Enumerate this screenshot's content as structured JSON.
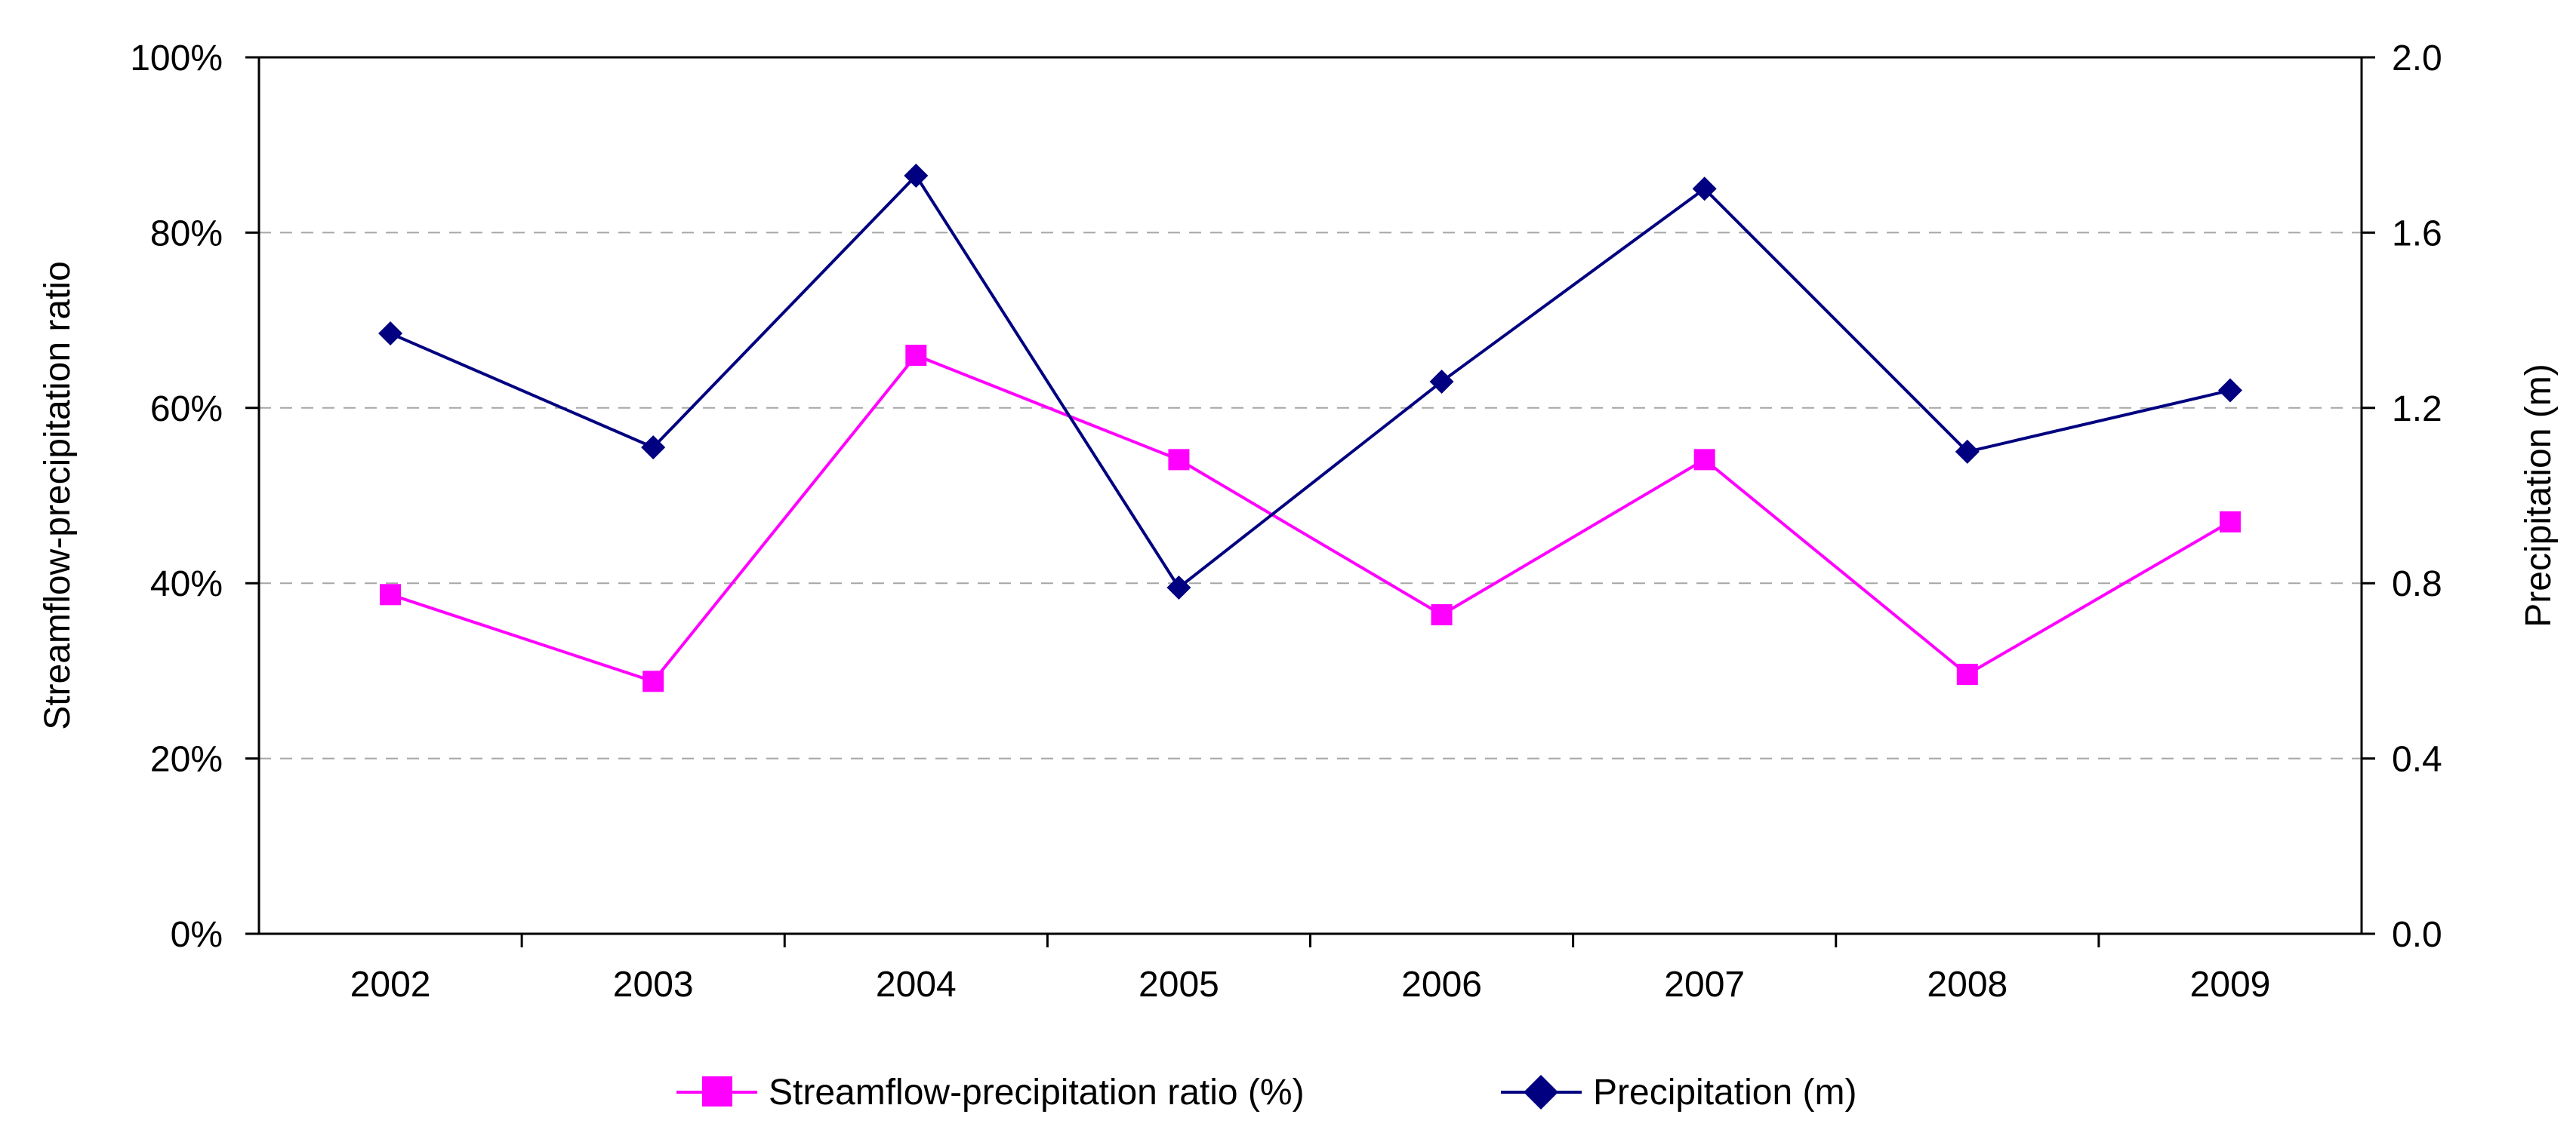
{
  "chart_data": {
    "type": "line",
    "categories": [
      "2002",
      "2003",
      "2004",
      "2005",
      "2006",
      "2007",
      "2008",
      "2009"
    ],
    "series": [
      {
        "name": "Streamflow-precipitation ratio (%)",
        "axis": "left",
        "marker": "square",
        "color": "#ff00ff",
        "values": [
          38.7,
          28.8,
          66.0,
          54.1,
          36.4,
          54.1,
          29.6,
          47.0
        ]
      },
      {
        "name": "Precipitation (m)",
        "axis": "right",
        "marker": "diamond",
        "color": "#000080",
        "values": [
          1.37,
          1.11,
          1.73,
          0.79,
          1.26,
          1.7,
          1.1,
          1.24
        ]
      }
    ],
    "ylabel": "Streamflow-precipitation ratio",
    "y2label": "Precipitation (m)",
    "ylim": [
      0,
      100
    ],
    "y2lim": [
      0,
      2.0
    ],
    "yticks": [
      "0%",
      "20%",
      "40%",
      "60%",
      "80%",
      "100%"
    ],
    "y2ticks": [
      "0.0",
      "0.4",
      "0.8",
      "1.2",
      "1.6",
      "2.0"
    ],
    "grid": "horizontal dashed",
    "legend": "bottom"
  }
}
